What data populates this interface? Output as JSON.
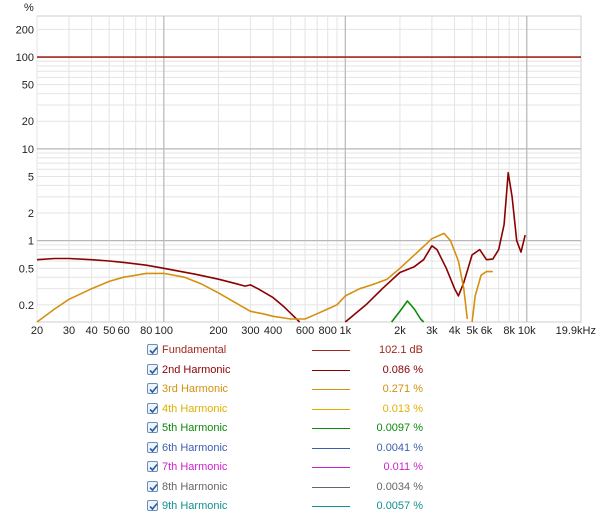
{
  "chart_data": {
    "type": "line",
    "title": "",
    "xlabel": "",
    "ylabel": "%",
    "x_scale": "log",
    "y_scale": "log",
    "xlim": [
      20,
      19900
    ],
    "ylim": [
      0.13,
      280
    ],
    "x_ticks": [
      {
        "value": 20,
        "label": "20"
      },
      {
        "value": 30,
        "label": "30"
      },
      {
        "value": 40,
        "label": "40"
      },
      {
        "value": 50,
        "label": "50"
      },
      {
        "value": 60,
        "label": "60"
      },
      {
        "value": 80,
        "label": "80"
      },
      {
        "value": 100,
        "label": "100"
      },
      {
        "value": 200,
        "label": "200"
      },
      {
        "value": 300,
        "label": "300"
      },
      {
        "value": 400,
        "label": "400"
      },
      {
        "value": 600,
        "label": "600"
      },
      {
        "value": 800,
        "label": "800"
      },
      {
        "value": 1000,
        "label": "1k"
      },
      {
        "value": 2000,
        "label": "2k"
      },
      {
        "value": 3000,
        "label": "3k"
      },
      {
        "value": 4000,
        "label": "4k"
      },
      {
        "value": 5000,
        "label": "5k"
      },
      {
        "value": 6000,
        "label": "6k"
      },
      {
        "value": 8000,
        "label": "8k"
      },
      {
        "value": 10000,
        "label": "10k"
      },
      {
        "value": 19900,
        "label": "19.9kHz"
      }
    ],
    "y_ticks": [
      {
        "value": 200,
        "label": "200"
      },
      {
        "value": 100,
        "label": "100"
      },
      {
        "value": 50,
        "label": "50"
      },
      {
        "value": 20,
        "label": "20"
      },
      {
        "value": 10,
        "label": "10"
      },
      {
        "value": 5,
        "label": "5"
      },
      {
        "value": 2,
        "label": "2"
      },
      {
        "value": 1,
        "label": "1"
      },
      {
        "value": 0.5,
        "label": "0.5"
      },
      {
        "value": 0.2,
        "label": "0.2"
      }
    ],
    "grid": true,
    "series": [
      {
        "name": "Fundamental",
        "value_label": "102.1 dB",
        "color": "#a0281e",
        "checked": true,
        "points": [
          [
            20,
            100
          ],
          [
            19900,
            100
          ]
        ]
      },
      {
        "name": "2nd Harmonic",
        "value_label": "0.086 %",
        "color": "#8b0000",
        "checked": true,
        "points": [
          [
            20,
            0.62
          ],
          [
            25,
            0.64
          ],
          [
            30,
            0.64
          ],
          [
            40,
            0.62
          ],
          [
            50,
            0.6
          ],
          [
            60,
            0.58
          ],
          [
            80,
            0.54
          ],
          [
            100,
            0.5
          ],
          [
            150,
            0.43
          ],
          [
            200,
            0.38
          ],
          [
            250,
            0.34
          ],
          [
            280,
            0.32
          ],
          [
            300,
            0.33
          ],
          [
            330,
            0.3
          ],
          [
            400,
            0.24
          ],
          [
            460,
            0.19
          ],
          [
            520,
            0.15
          ],
          [
            560,
            0.13
          ]
        ]
      },
      {
        "name": "2nd Harmonic cont.",
        "color": "#8b0000",
        "points": [
          [
            1000,
            0.13
          ],
          [
            1300,
            0.2
          ],
          [
            1600,
            0.3
          ],
          [
            2000,
            0.45
          ],
          [
            2400,
            0.52
          ],
          [
            2700,
            0.62
          ],
          [
            3000,
            0.88
          ],
          [
            3200,
            0.8
          ],
          [
            3600,
            0.5
          ],
          [
            4000,
            0.3
          ],
          [
            4200,
            0.25
          ],
          [
            4500,
            0.35
          ],
          [
            5000,
            0.7
          ],
          [
            5500,
            0.8
          ],
          [
            6000,
            0.62
          ],
          [
            6500,
            0.63
          ],
          [
            7000,
            0.8
          ],
          [
            7500,
            1.5
          ],
          [
            7900,
            5.5
          ],
          [
            8300,
            3.0
          ],
          [
            8800,
            1.0
          ],
          [
            9300,
            0.75
          ],
          [
            9800,
            1.15
          ]
        ]
      },
      {
        "name": "3rd Harmonic",
        "value_label": "0.271 %",
        "color": "#d4900f",
        "checked": true,
        "points": [
          [
            20,
            0.13
          ],
          [
            25,
            0.18
          ],
          [
            30,
            0.23
          ],
          [
            40,
            0.3
          ],
          [
            50,
            0.36
          ],
          [
            60,
            0.4
          ],
          [
            80,
            0.44
          ],
          [
            100,
            0.44
          ],
          [
            130,
            0.4
          ],
          [
            160,
            0.34
          ],
          [
            200,
            0.27
          ],
          [
            260,
            0.2
          ],
          [
            300,
            0.17
          ],
          [
            350,
            0.16
          ],
          [
            400,
            0.15
          ],
          [
            500,
            0.14
          ],
          [
            600,
            0.14
          ],
          [
            700,
            0.16
          ],
          [
            800,
            0.18
          ],
          [
            900,
            0.2
          ],
          [
            1000,
            0.25
          ],
          [
            1200,
            0.3
          ],
          [
            1400,
            0.33
          ],
          [
            1700,
            0.38
          ],
          [
            2000,
            0.5
          ],
          [
            2500,
            0.75
          ],
          [
            3000,
            1.05
          ],
          [
            3500,
            1.2
          ],
          [
            3800,
            1.0
          ],
          [
            4200,
            0.6
          ],
          [
            4500,
            0.3
          ],
          [
            4700,
            0.14
          ]
        ]
      },
      {
        "name": "3rd Harmonic cont.",
        "color": "#d4900f",
        "points": [
          [
            5000,
            0.13
          ],
          [
            5200,
            0.25
          ],
          [
            5600,
            0.42
          ],
          [
            6000,
            0.46
          ],
          [
            6500,
            0.46
          ]
        ]
      },
      {
        "name": "4th Harmonic",
        "value_label": "0.013 %",
        "color": "#e0b000",
        "checked": true,
        "points": []
      },
      {
        "name": "5th Harmonic",
        "value_label": "0.0097 %",
        "color": "#0a8a0a",
        "checked": true,
        "points": [
          [
            1800,
            0.13
          ],
          [
            2000,
            0.17
          ],
          [
            2200,
            0.22
          ],
          [
            2400,
            0.18
          ],
          [
            2600,
            0.14
          ],
          [
            2700,
            0.13
          ]
        ]
      },
      {
        "name": "6th Harmonic",
        "value_label": "0.0041 %",
        "color": "#3b5fb0",
        "checked": true,
        "points": []
      },
      {
        "name": "7th Harmonic",
        "value_label": "0.011 %",
        "color": "#cc22cc",
        "checked": true,
        "points": []
      },
      {
        "name": "8th Harmonic",
        "value_label": "0.0034 %",
        "color": "#666666",
        "checked": true,
        "points": []
      },
      {
        "name": "9th Harmonic",
        "value_label": "0.0057 %",
        "color": "#129090",
        "checked": true,
        "points": []
      }
    ]
  }
}
